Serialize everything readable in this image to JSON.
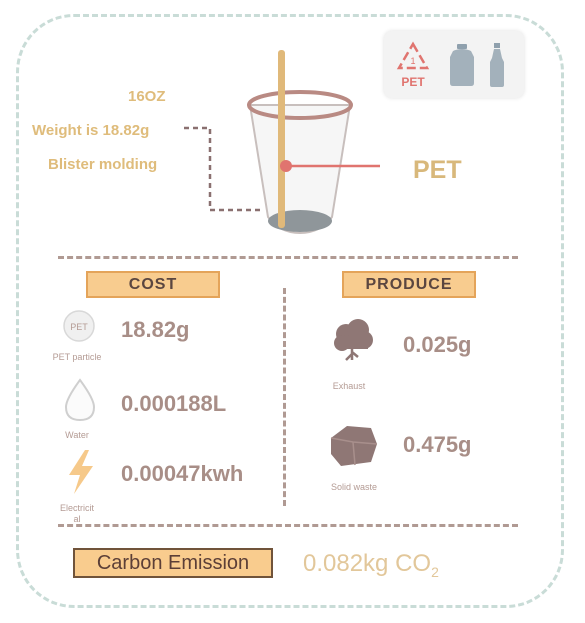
{
  "badges": {
    "recycle_label": "PET",
    "icons": [
      "pet-recycle-icon",
      "jug-icon",
      "bottle-icon"
    ]
  },
  "cup": {
    "size": "16OZ",
    "weight": "Weight is 18.82g",
    "process": "Blister molding",
    "material": "PET"
  },
  "cost": {
    "label": "COST",
    "items": [
      {
        "icon": "pet-particle-icon",
        "icon_text": "PET",
        "value": "18.82g",
        "caption": "PET particle"
      },
      {
        "icon": "water-drop-icon",
        "value": "0.000188L",
        "caption": "Water"
      },
      {
        "icon": "lightning-icon",
        "value": "0.00047kwh",
        "caption": "Electricit",
        "caption2": "al"
      }
    ]
  },
  "produce": {
    "label": "PRODUCE",
    "items": [
      {
        "icon": "cloud-icon",
        "value": "0.025g",
        "caption": "Exhaust"
      },
      {
        "icon": "solid-waste-icon",
        "value": "0.475g",
        "caption": "Solid waste"
      }
    ]
  },
  "carbon": {
    "label": "Carbon Emission",
    "value": "0.082kg CO",
    "subscript": "2"
  },
  "colors": {
    "frame": "#c9dcd7",
    "accent_gold": "#dfbc7b",
    "label_fill": "#f8cc8f",
    "pet_red": "#e0746f",
    "value_brown": "#a88e87"
  }
}
